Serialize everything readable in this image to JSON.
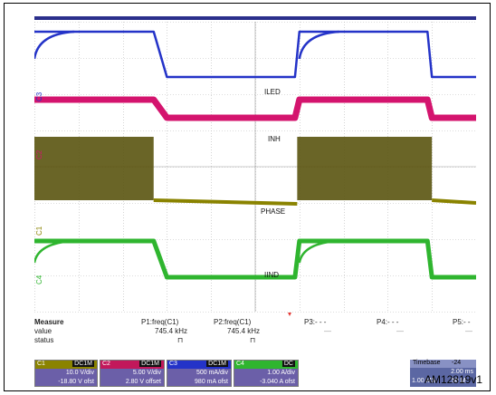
{
  "figure_id": "AM12819v1",
  "chart_data": {
    "type": "line",
    "title": "",
    "xlabel": "",
    "ylabel": "",
    "grid": true,
    "x_divisions": 10,
    "y_divisions": 8,
    "x": [
      0,
      1.5,
      2.7,
      3,
      4.8,
      4.95,
      5.5,
      5.9,
      6.0,
      6.1,
      6.8,
      7.0,
      8.9,
      9.0,
      10
    ],
    "series": [
      {
        "name": "ILED",
        "channel": "C3",
        "color": "#2433c8",
        "values": [
          1,
          1,
          1,
          -1,
          -1,
          -1,
          -1,
          -1,
          1,
          1,
          1,
          1,
          1,
          -1,
          -1
        ]
      },
      {
        "name": "INH",
        "channel": "C2",
        "color": "#d4146e",
        "values": [
          1,
          1,
          1,
          -1,
          -1,
          -1,
          -1,
          -1,
          1,
          1,
          1,
          1,
          1,
          -1,
          -1
        ]
      },
      {
        "name": "PHASE",
        "channel": "C1",
        "color": "#8a8300",
        "values": [
          1,
          1,
          1,
          -1,
          -1,
          -1,
          -1,
          -1,
          1,
          1,
          1,
          1,
          1,
          -1,
          -1
        ]
      },
      {
        "name": "IIND",
        "channel": "C4",
        "color": "#2fb52f",
        "values": [
          1,
          1,
          1,
          -1,
          -1,
          -1,
          -1,
          -1,
          1,
          1,
          1,
          1,
          1,
          -1,
          -1
        ]
      }
    ],
    "trace_labels": [
      "ILED",
      "INH",
      "PHASE",
      "IIND"
    ],
    "channel_tags": [
      "C3",
      "C2",
      "C1",
      "C4"
    ]
  },
  "measure": {
    "heading": "Measure",
    "row_value": "value",
    "row_status": "status",
    "p1_name": "P1:freq(C1)",
    "p1_value": "745.4 kHz",
    "p1_status": "⊓",
    "p2_name": "P2:freq(C1)",
    "p2_value": "745.4 kHz",
    "p2_status": "⊓",
    "p3_name": "P3:- - -",
    "p3_value": "—",
    "p4_name": "P4:- - -",
    "p4_value": "—",
    "p5_name": "P5:- -",
    "p5_value": "—"
  },
  "channels": [
    {
      "tag": "C1",
      "mode": "DC1M",
      "color": "#8a8300",
      "line1": "10.0 V/div",
      "line2": "-18.80 V ofst"
    },
    {
      "tag": "C2",
      "mode": "DC1M",
      "color": "#c2185b",
      "line1": "5.00 V/div",
      "line2": "2.80 V offset"
    },
    {
      "tag": "C3",
      "mode": "DC1M",
      "color": "#2433c8",
      "line1": "500 mA/div",
      "line2": "980 mA ofst"
    },
    {
      "tag": "C4",
      "mode": "DC",
      "color": "#2fb52f",
      "line1": "1.00 A/div",
      "line2": "-3.040 A ofst"
    }
  ],
  "timebase": {
    "label": "Timebase",
    "value": "-24",
    "line1": "2.00 ms",
    "line2a": "1.00 MS",
    "line2b": "50 M"
  },
  "colors": {
    "grid": "#b9b9b9",
    "frame": "#000000",
    "panel": "#dcdcdc"
  }
}
